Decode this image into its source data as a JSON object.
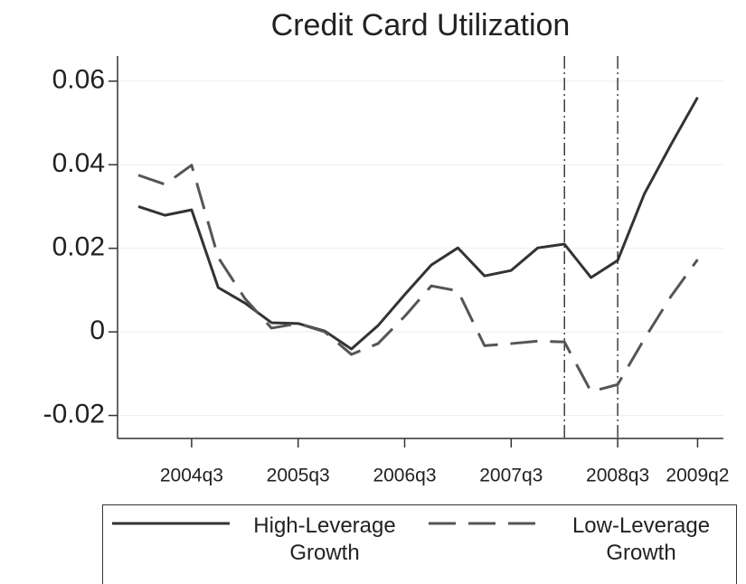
{
  "chart_data": {
    "type": "line",
    "title": "Credit Card Utilization",
    "categories": [
      null,
      null,
      "2004q3",
      null,
      null,
      null,
      "2005q3",
      null,
      null,
      null,
      "2006q3",
      null,
      null,
      null,
      "2007q3",
      null,
      null,
      null,
      "2008q3",
      null,
      null,
      "2009q2"
    ],
    "series": [
      {
        "name": "High-Leverage Growth",
        "color": "#333333",
        "dash": "solid",
        "values": [
          0.03,
          0.0279,
          0.0292,
          0.0106,
          0.0069,
          0.0022,
          0.002,
          0.0002,
          -0.0041,
          0.0015,
          0.0089,
          0.016,
          0.0201,
          0.0134,
          0.0147,
          0.0201,
          0.021,
          0.013,
          0.0171,
          0.033,
          0.0448,
          0.0561
        ]
      },
      {
        "name": "Low-Leverage Growth",
        "color": "#555555",
        "dash": "dashed",
        "values": [
          0.0375,
          0.0353,
          0.0399,
          0.0178,
          0.008,
          0.0009,
          0.002,
          0,
          -0.0054,
          -0.0028,
          0.0037,
          0.011,
          0.0098,
          -0.0033,
          -0.0028,
          -0.0022,
          -0.0024,
          -0.0143,
          -0.0126,
          -0.0017,
          0.0085,
          0.0173
        ]
      }
    ],
    "vlines": [
      16,
      18
    ],
    "ylim": [
      -0.0255,
      0.066
    ],
    "yticks": [
      -0.02,
      0,
      0.02,
      0.04,
      0.06
    ],
    "grid": true,
    "legend": "bottom"
  }
}
